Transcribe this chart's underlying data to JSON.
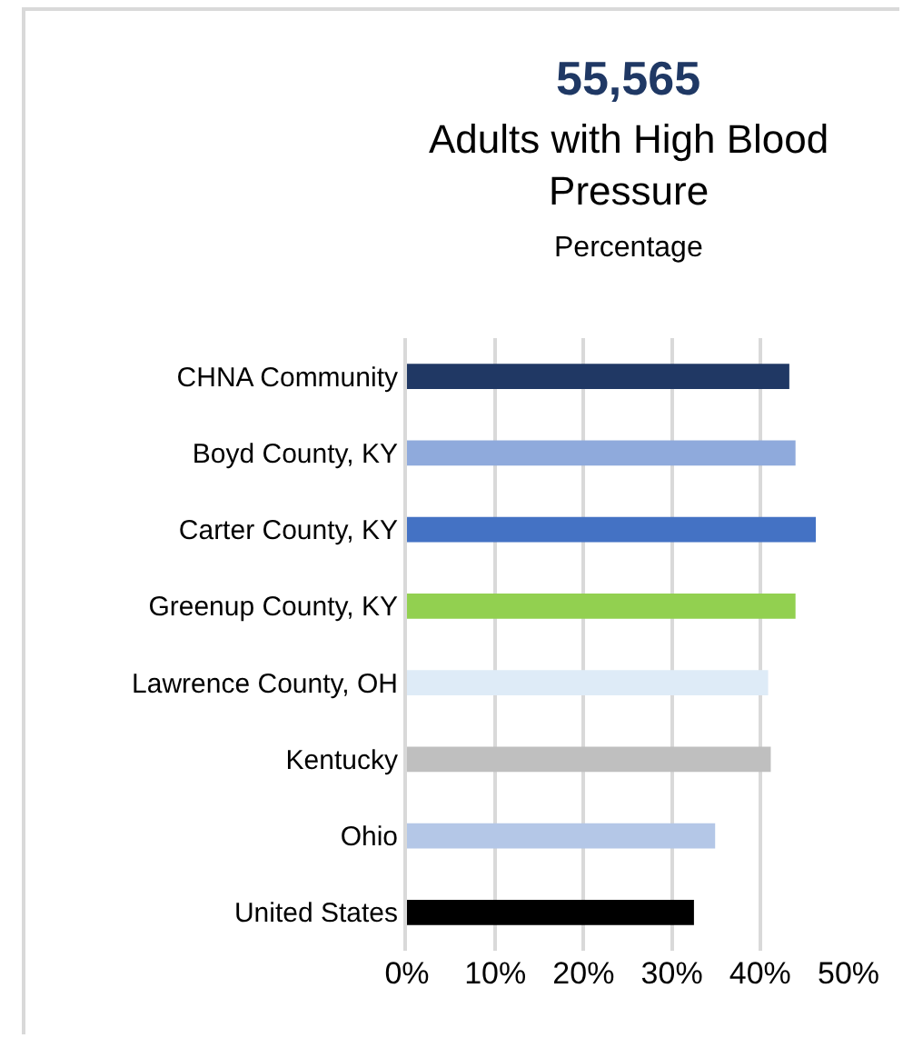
{
  "chart_data": {
    "type": "bar",
    "orientation": "horizontal",
    "title": "55,565",
    "subtitle": "Adults with High Blood Pressure",
    "annotations": [
      "Percentage"
    ],
    "categories": [
      "CHNA Community",
      "Boyd County, KY",
      "Carter County, KY",
      "Greenup County, KY",
      "Lawrence County, OH",
      "Kentucky",
      "Ohio",
      "United States"
    ],
    "values": [
      43.3,
      44.0,
      46.3,
      44.0,
      40.9,
      41.2,
      34.9,
      32.5
    ],
    "colors": [
      "#203864",
      "#8faadc",
      "#4472c4",
      "#92d050",
      "#deebf7",
      "#bfbfbf",
      "#b4c7e7",
      "#000000"
    ],
    "xlim": [
      0,
      50
    ],
    "xticks": [
      {
        "value": 0,
        "label": "0%"
      },
      {
        "value": 10,
        "label": "10%"
      },
      {
        "value": 20,
        "label": "20%"
      },
      {
        "value": 30,
        "label": "30%"
      },
      {
        "value": 40,
        "label": "40%"
      },
      {
        "value": 50,
        "label": "50%"
      }
    ],
    "grid": "x"
  }
}
